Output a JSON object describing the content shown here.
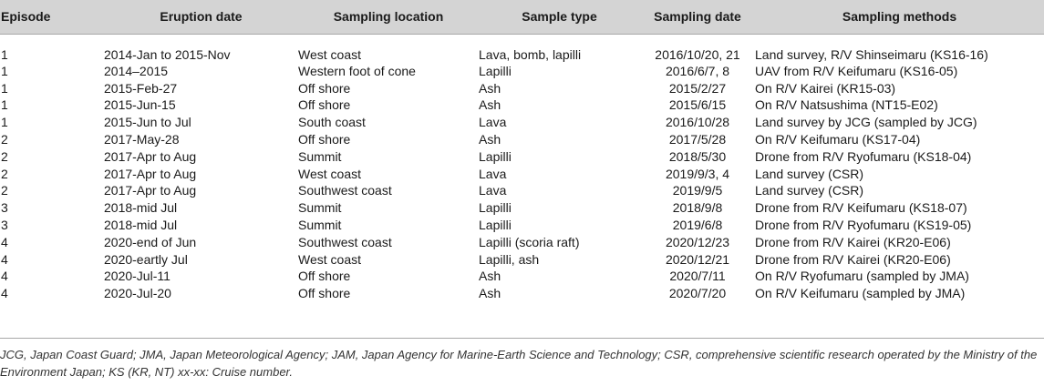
{
  "table": {
    "headers": {
      "episode": "Episode",
      "eruption_date": "Eruption date",
      "sampling_location": "Sampling location",
      "sample_type": "Sample type",
      "sampling_date": "Sampling date",
      "sampling_methods": "Sampling methods"
    },
    "rows": [
      [
        "1",
        "2014-Jan to 2015-Nov",
        "West coast",
        "Lava, bomb, lapilli",
        "2016/10/20, 21",
        "Land survey, R/V Shinseimaru (KS16-16)"
      ],
      [
        "1",
        "2014–2015",
        "Western foot of cone",
        "Lapilli",
        "2016/6/7, 8",
        "UAV from R/V Keifumaru (KS16-05)"
      ],
      [
        "1",
        "2015-Feb-27",
        "Off shore",
        "Ash",
        "2015/2/27",
        "On R/V Kairei (KR15-03)"
      ],
      [
        "1",
        "2015-Jun-15",
        "Off shore",
        "Ash",
        "2015/6/15",
        "On R/V Natsushima (NT15-E02)"
      ],
      [
        "1",
        "2015-Jun to Jul",
        "South coast",
        "Lava",
        "2016/10/28",
        "Land survey by JCG (sampled by JCG)"
      ],
      [
        "2",
        "2017-May-28",
        "Off shore",
        "Ash",
        "2017/5/28",
        "On R/V Keifumaru (KS17-04)"
      ],
      [
        "2",
        "2017-Apr to Aug",
        "Summit",
        "Lapilli",
        "2018/5/30",
        "Drone from R/V Ryofumaru (KS18-04)"
      ],
      [
        "2",
        "2017-Apr to Aug",
        "West coast",
        "Lava",
        "2019/9/3, 4",
        "Land survey (CSR)"
      ],
      [
        "2",
        "2017-Apr to Aug",
        "Southwest coast",
        "Lava",
        "2019/9/5",
        "Land survey (CSR)"
      ],
      [
        "3",
        "2018-mid Jul",
        "Summit",
        "Lapilli",
        "2018/9/8",
        "Drone from R/V Keifumaru (KS18-07)"
      ],
      [
        "3",
        "2018-mid Jul",
        "Summit",
        "Lapilli",
        "2019/6/8",
        "Drone from R/V Ryofumaru (KS19-05)"
      ],
      [
        "4",
        "2020-end of Jun",
        "Southwest coast",
        "Lapilli (scoria raft)",
        "2020/12/23",
        "Drone from R/V Kairei (KR20-E06)"
      ],
      [
        "4",
        "2020-eartly Jul",
        "West coast",
        "Lapilli, ash",
        "2020/12/21",
        "Drone from R/V Kairei (KR20-E06)"
      ],
      [
        "4",
        "2020-Jul-11",
        "Off shore",
        "Ash",
        "2020/7/11",
        "On R/V Ryofumaru (sampled by JMA)"
      ],
      [
        "4",
        "2020-Jul-20",
        "Off shore",
        "Ash",
        "2020/7/20",
        "On R/V Keifumaru (sampled by JMA)"
      ]
    ]
  },
  "footnote": "JCG, Japan Coast Guard; JMA, Japan Meteorological Agency; JAM, Japan Agency for Marine-Earth Science and Technology; CSR, comprehensive scientific research operated by the Ministry of the Environment Japan; KS (KR, NT) xx-xx: Cruise number.",
  "colors": {
    "header_background": "#d4d4d4",
    "rule": "#a8a8a8",
    "text": "#1a1a1a"
  }
}
